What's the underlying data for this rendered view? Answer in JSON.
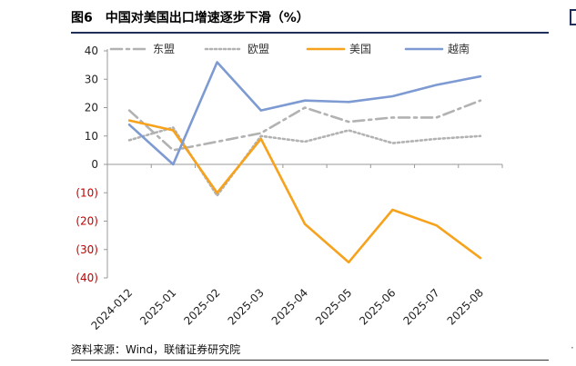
{
  "figure": {
    "title": "图6　中国对美国出口增速逐步下滑（%）",
    "source": "资料来源：Wind，联储证券研究院"
  },
  "chart_data": {
    "type": "line",
    "title": "中国对美国出口增速逐步下滑（%）",
    "categories": [
      "2024-012",
      "2025-01",
      "2025-02",
      "2025-03",
      "2025-04",
      "2025-05",
      "2025-06",
      "2025-07",
      "2025-08"
    ],
    "y_tick_labels": [
      "40",
      "30",
      "20",
      "10",
      "0",
      "(10)",
      "(20)",
      "(30)",
      "(40)"
    ],
    "y_ticks": [
      40,
      30,
      20,
      10,
      0,
      -10,
      -20,
      -30,
      -40
    ],
    "ylim": [
      -40,
      40
    ],
    "legend_position": "top",
    "grid": false,
    "series": [
      {
        "name": "东盟",
        "color": "#b2b2b2",
        "style": "dashdot",
        "values": [
          19,
          5,
          8,
          11,
          20,
          15,
          16.5,
          16.5,
          22.5
        ]
      },
      {
        "name": "欧盟",
        "color": "#b2b2b2",
        "style": "dotted",
        "values": [
          8.5,
          13,
          -11,
          10,
          8,
          12,
          7.5,
          9,
          10
        ]
      },
      {
        "name": "美国",
        "color": "#f7a21c",
        "style": "solid",
        "values": [
          15.5,
          12,
          -10,
          9,
          -21,
          -34.5,
          -16,
          -21.5,
          -33
        ]
      },
      {
        "name": "越南",
        "color": "#7d9ad2",
        "style": "solid",
        "values": [
          14,
          0,
          36,
          19,
          22.5,
          22,
          24,
          28,
          31
        ]
      }
    ],
    "negative_label_color": "#c00000",
    "axis_color": "#999999"
  }
}
